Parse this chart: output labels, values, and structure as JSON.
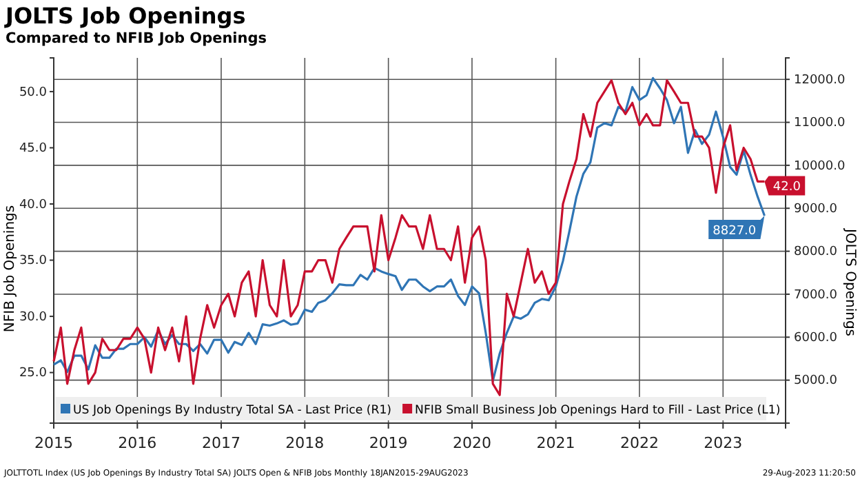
{
  "chart_data": {
    "type": "line",
    "title": "JOLTS Job Openings",
    "subtitle": "Compared to NFIB Job Openings",
    "ylabel": "NFIB Job Openings",
    "y2label": "JOLTS Openings",
    "annotations": [
      "JOLTTOTL Index (US Job Openings By Industry Total SA) JOLTS Open & NFIB Jobs  Monthly 18JAN2015-29AUG2023",
      "29-Aug-2023 11:20:50"
    ],
    "x": [
      "2015-01",
      "2015-02",
      "2015-03",
      "2015-04",
      "2015-05",
      "2015-06",
      "2015-07",
      "2015-08",
      "2015-09",
      "2015-10",
      "2015-11",
      "2015-12",
      "2016-01",
      "2016-02",
      "2016-03",
      "2016-04",
      "2016-05",
      "2016-06",
      "2016-07",
      "2016-08",
      "2016-09",
      "2016-10",
      "2016-11",
      "2016-12",
      "2017-01",
      "2017-02",
      "2017-03",
      "2017-04",
      "2017-05",
      "2017-06",
      "2017-07",
      "2017-08",
      "2017-09",
      "2017-10",
      "2017-11",
      "2017-12",
      "2018-01",
      "2018-02",
      "2018-03",
      "2018-04",
      "2018-05",
      "2018-06",
      "2018-07",
      "2018-08",
      "2018-09",
      "2018-10",
      "2018-11",
      "2018-12",
      "2019-01",
      "2019-02",
      "2019-03",
      "2019-04",
      "2019-05",
      "2019-06",
      "2019-07",
      "2019-08",
      "2019-09",
      "2019-10",
      "2019-11",
      "2019-12",
      "2020-01",
      "2020-02",
      "2020-03",
      "2020-04",
      "2020-05",
      "2020-06",
      "2020-07",
      "2020-08",
      "2020-09",
      "2020-10",
      "2020-11",
      "2020-12",
      "2021-01",
      "2021-02",
      "2021-03",
      "2021-04",
      "2021-05",
      "2021-06",
      "2021-07",
      "2021-08",
      "2021-09",
      "2021-10",
      "2021-11",
      "2021-12",
      "2022-01",
      "2022-02",
      "2022-03",
      "2022-04",
      "2022-05",
      "2022-06",
      "2022-07",
      "2022-08",
      "2022-09",
      "2022-10",
      "2022-11",
      "2022-12",
      "2023-01",
      "2023-02",
      "2023-03",
      "2023-04",
      "2023-05",
      "2023-06",
      "2023-07"
    ],
    "series": [
      {
        "name": "US Job Openings By Industry Total SA - Last Price (R1)",
        "color": "#2f75b5",
        "axis": "y2",
        "values": [
          5360,
          5460,
          5190,
          5570,
          5570,
          5250,
          5810,
          5520,
          5520,
          5730,
          5730,
          5840,
          5840,
          6000,
          5780,
          6160,
          5840,
          6050,
          5840,
          5840,
          5680,
          5840,
          5620,
          5940,
          5940,
          5640,
          5890,
          5820,
          6100,
          5840,
          6300,
          6270,
          6320,
          6390,
          6290,
          6320,
          6640,
          6590,
          6800,
          6860,
          7020,
          7230,
          7210,
          7210,
          7450,
          7340,
          7610,
          7530,
          7470,
          7420,
          7100,
          7340,
          7340,
          7180,
          7070,
          7180,
          7180,
          7340,
          6960,
          6750,
          7180,
          7020,
          6100,
          4980,
          5620,
          6100,
          6480,
          6430,
          6530,
          6800,
          6890,
          6860,
          7180,
          7770,
          8460,
          9270,
          9800,
          10070,
          10880,
          10980,
          10930,
          11360,
          11250,
          11820,
          11520,
          11630,
          12030,
          11790,
          11520,
          10980,
          11360,
          10290,
          10820,
          10500,
          10710,
          11250,
          10660,
          9960,
          9780,
          10340,
          9780,
          9270,
          8827
        ],
        "value_labels": [
          null,
          null,
          null,
          null,
          null,
          null,
          null,
          null,
          null,
          null,
          null,
          null,
          null,
          null,
          null,
          null,
          null,
          null,
          null,
          null,
          null,
          null,
          null,
          null,
          null,
          null,
          null,
          null,
          null,
          null,
          null,
          null,
          null,
          null,
          null,
          null,
          null,
          null,
          null,
          null,
          null,
          null,
          null,
          null,
          null,
          null,
          null,
          null,
          null,
          null,
          null,
          null,
          null,
          null,
          null,
          null,
          null,
          null,
          null,
          null,
          null,
          null,
          null,
          null,
          null,
          null,
          null,
          null,
          null,
          null,
          null,
          null,
          null,
          null,
          null,
          null,
          null,
          null,
          null,
          null,
          null,
          null,
          null,
          null,
          null,
          null,
          null,
          null,
          null,
          null,
          null,
          null,
          null,
          null,
          null,
          null,
          null,
          null,
          null,
          null,
          null,
          null,
          "8827.0"
        ]
      },
      {
        "name": "NFIB Small Business Job Openings Hard to Fill - Last Price (L1)",
        "color": "#c8102e",
        "values": [
          26,
          29,
          24,
          27,
          29,
          24,
          25,
          28,
          27,
          27,
          28,
          28,
          29,
          28,
          25,
          29,
          27,
          29,
          26,
          30,
          24,
          28,
          31,
          29,
          31,
          32,
          30,
          33,
          34,
          30,
          35,
          31,
          30,
          35,
          30,
          31,
          34,
          34,
          35,
          35,
          33,
          36,
          37,
          38,
          38,
          38,
          34,
          39,
          35,
          37,
          39,
          38,
          38,
          36,
          39,
          36,
          36,
          35,
          38,
          33,
          37,
          38,
          35,
          24,
          23,
          32,
          30,
          33,
          36,
          33,
          34,
          32,
          33,
          40,
          42,
          44,
          48,
          46,
          49,
          50,
          51,
          49,
          48,
          49,
          47,
          48,
          47,
          47,
          51,
          50,
          49,
          49,
          46,
          46,
          45,
          41,
          45,
          47,
          43,
          45,
          44,
          42,
          42
        ],
        "value_labels": [
          null,
          null,
          null,
          null,
          null,
          null,
          null,
          null,
          null,
          null,
          null,
          null,
          null,
          null,
          null,
          null,
          null,
          null,
          null,
          null,
          null,
          null,
          null,
          null,
          null,
          null,
          null,
          null,
          null,
          null,
          null,
          null,
          null,
          null,
          null,
          null,
          null,
          null,
          null,
          null,
          null,
          null,
          null,
          null,
          null,
          null,
          null,
          null,
          null,
          null,
          null,
          null,
          null,
          null,
          null,
          null,
          null,
          null,
          null,
          null,
          null,
          null,
          null,
          null,
          null,
          null,
          null,
          null,
          null,
          null,
          null,
          null,
          null,
          null,
          null,
          null,
          null,
          null,
          null,
          null,
          null,
          null,
          null,
          null,
          null,
          null,
          null,
          null,
          null,
          null,
          null,
          null,
          null,
          null,
          null,
          null,
          null,
          null,
          null,
          null,
          null,
          null,
          "42.0"
        ]
      }
    ],
    "xlim": [
      "2015-01",
      "2023-10"
    ],
    "xticks": [
      {
        "value": "2015-01",
        "label": "2015"
      },
      {
        "value": "2016-01",
        "label": "2016"
      },
      {
        "value": "2017-01",
        "label": "2017"
      },
      {
        "value": "2018-01",
        "label": "2018"
      },
      {
        "value": "2019-01",
        "label": "2019"
      },
      {
        "value": "2020-01",
        "label": "2020"
      },
      {
        "value": "2021-01",
        "label": "2021"
      },
      {
        "value": "2022-01",
        "label": "2022"
      },
      {
        "value": "2023-01",
        "label": "2023"
      }
    ],
    "ylim": [
      20.5,
      53
    ],
    "yticks": [
      {
        "value": 25,
        "label": "25.0"
      },
      {
        "value": 30,
        "label": "30.0"
      },
      {
        "value": 35,
        "label": "35.0"
      },
      {
        "value": 40,
        "label": "40.0"
      },
      {
        "value": 45,
        "label": "45.0"
      },
      {
        "value": 50,
        "label": "50.0"
      }
    ],
    "y2lim": [
      4000,
      12500
    ],
    "y2ticks": [
      {
        "value": 5000,
        "label": "5000.0"
      },
      {
        "value": 6000,
        "label": "6000.0"
      },
      {
        "value": 7000,
        "label": "7000.0"
      },
      {
        "value": 8000,
        "label": "8000.0"
      },
      {
        "value": 9000,
        "label": "9000.0"
      },
      {
        "value": 10000,
        "label": "10000.0"
      },
      {
        "value": 11000,
        "label": "11000.0"
      },
      {
        "value": 12000,
        "label": "12000.0"
      }
    ],
    "grid": true,
    "legend": "bottom",
    "line_style": "solid",
    "marker": "none"
  }
}
